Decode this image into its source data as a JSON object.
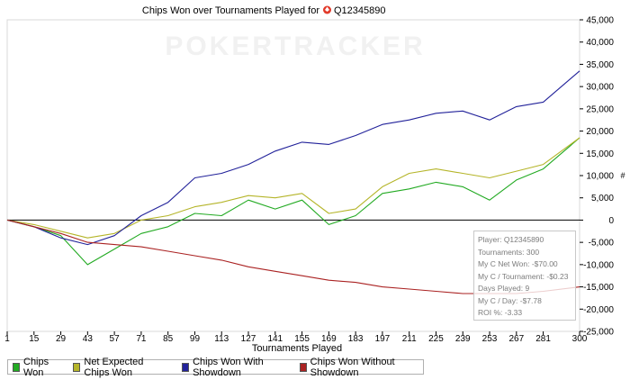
{
  "chart_data": {
    "type": "line",
    "title": "Chips Won over Tournaments Played for",
    "player": "Q12345890",
    "watermark": "POKERTRACKER",
    "xlabel": "Tournaments Played",
    "ylabel": "#",
    "x_ticks": [
      1,
      15,
      29,
      43,
      57,
      71,
      85,
      99,
      113,
      127,
      141,
      155,
      169,
      183,
      197,
      211,
      225,
      239,
      253,
      267,
      281,
      300
    ],
    "y_ticks": [
      -25000,
      -20000,
      -15000,
      -10000,
      -5000,
      0,
      5000,
      10000,
      15000,
      20000,
      25000,
      30000,
      35000,
      40000,
      45000
    ],
    "y_tick_labels": [
      "-25,000",
      "-20,000",
      "-15,000",
      "-10,000",
      "-5,000",
      "0",
      "5,000",
      "10,000",
      "15,000",
      "20,000",
      "25,000",
      "30,000",
      "35,000",
      "40,000",
      "45,000"
    ],
    "xlim": [
      1,
      300
    ],
    "ylim": [
      -25000,
      45000
    ],
    "grid": false,
    "legend_position": "bottom-left",
    "series": [
      {
        "name": "Chips Won",
        "color": "#22aa22",
        "points": [
          [
            1,
            0
          ],
          [
            15,
            -1500
          ],
          [
            29,
            -3500
          ],
          [
            43,
            -10000
          ],
          [
            57,
            -6500
          ],
          [
            71,
            -3000
          ],
          [
            85,
            -1500
          ],
          [
            99,
            1500
          ],
          [
            113,
            1000
          ],
          [
            127,
            4500
          ],
          [
            141,
            2500
          ],
          [
            155,
            4500
          ],
          [
            169,
            -1000
          ],
          [
            183,
            1000
          ],
          [
            197,
            6000
          ],
          [
            211,
            7000
          ],
          [
            225,
            8500
          ],
          [
            239,
            7500
          ],
          [
            253,
            4500
          ],
          [
            267,
            9000
          ],
          [
            281,
            11500
          ],
          [
            300,
            18500
          ]
        ]
      },
      {
        "name": "Net Expected Chips Won",
        "color": "#b5b52a",
        "points": [
          [
            1,
            0
          ],
          [
            15,
            -1000
          ],
          [
            29,
            -2500
          ],
          [
            43,
            -4000
          ],
          [
            57,
            -3000
          ],
          [
            71,
            0
          ],
          [
            85,
            1000
          ],
          [
            99,
            3000
          ],
          [
            113,
            4000
          ],
          [
            127,
            5500
          ],
          [
            141,
            5000
          ],
          [
            155,
            6000
          ],
          [
            169,
            1500
          ],
          [
            183,
            2500
          ],
          [
            197,
            7500
          ],
          [
            211,
            10500
          ],
          [
            225,
            11500
          ],
          [
            239,
            10500
          ],
          [
            253,
            9500
          ],
          [
            267,
            11000
          ],
          [
            281,
            12500
          ],
          [
            300,
            18500
          ]
        ]
      },
      {
        "name": "Chips Won With Showdown",
        "color": "#22229a",
        "points": [
          [
            1,
            0
          ],
          [
            15,
            -1500
          ],
          [
            29,
            -4000
          ],
          [
            43,
            -5500
          ],
          [
            57,
            -3500
          ],
          [
            71,
            1000
          ],
          [
            85,
            4000
          ],
          [
            99,
            9500
          ],
          [
            113,
            10500
          ],
          [
            127,
            12500
          ],
          [
            141,
            15500
          ],
          [
            155,
            17500
          ],
          [
            169,
            17000
          ],
          [
            183,
            19000
          ],
          [
            197,
            21500
          ],
          [
            211,
            22500
          ],
          [
            225,
            24000
          ],
          [
            239,
            24500
          ],
          [
            253,
            22500
          ],
          [
            267,
            25500
          ],
          [
            281,
            26500
          ],
          [
            300,
            33500
          ]
        ]
      },
      {
        "name": "Chips Won Without Showdown",
        "color": "#aa2222",
        "points": [
          [
            1,
            0
          ],
          [
            15,
            -1500
          ],
          [
            29,
            -3000
          ],
          [
            43,
            -5000
          ],
          [
            57,
            -5500
          ],
          [
            71,
            -6000
          ],
          [
            85,
            -7000
          ],
          [
            99,
            -8000
          ],
          [
            113,
            -9000
          ],
          [
            127,
            -10500
          ],
          [
            141,
            -11500
          ],
          [
            155,
            -12500
          ],
          [
            169,
            -13500
          ],
          [
            183,
            -14000
          ],
          [
            197,
            -15000
          ],
          [
            211,
            -15500
          ],
          [
            225,
            -16000
          ],
          [
            239,
            -16500
          ],
          [
            253,
            -16500
          ],
          [
            267,
            -16500
          ],
          [
            281,
            -16000
          ],
          [
            300,
            -15000
          ]
        ]
      }
    ]
  },
  "stats": {
    "player": "Player: Q12345890",
    "tournaments": "Tournaments: 300",
    "net_won": "My C Net Won: -$70.00",
    "per_tournament": "My C / Tournament: -$0.23",
    "days_played": "Days Played: 9",
    "per_day": "My C / Day: -$7.78",
    "roi": "ROI %: -3.33"
  },
  "legend": [
    {
      "label": "Chips Won",
      "color": "#22aa22"
    },
    {
      "label": "Net Expected Chips Won",
      "color": "#b5b52a"
    },
    {
      "label": "Chips Won With Showdown",
      "color": "#22229a"
    },
    {
      "label": "Chips Won Without Showdown",
      "color": "#aa2222"
    }
  ]
}
